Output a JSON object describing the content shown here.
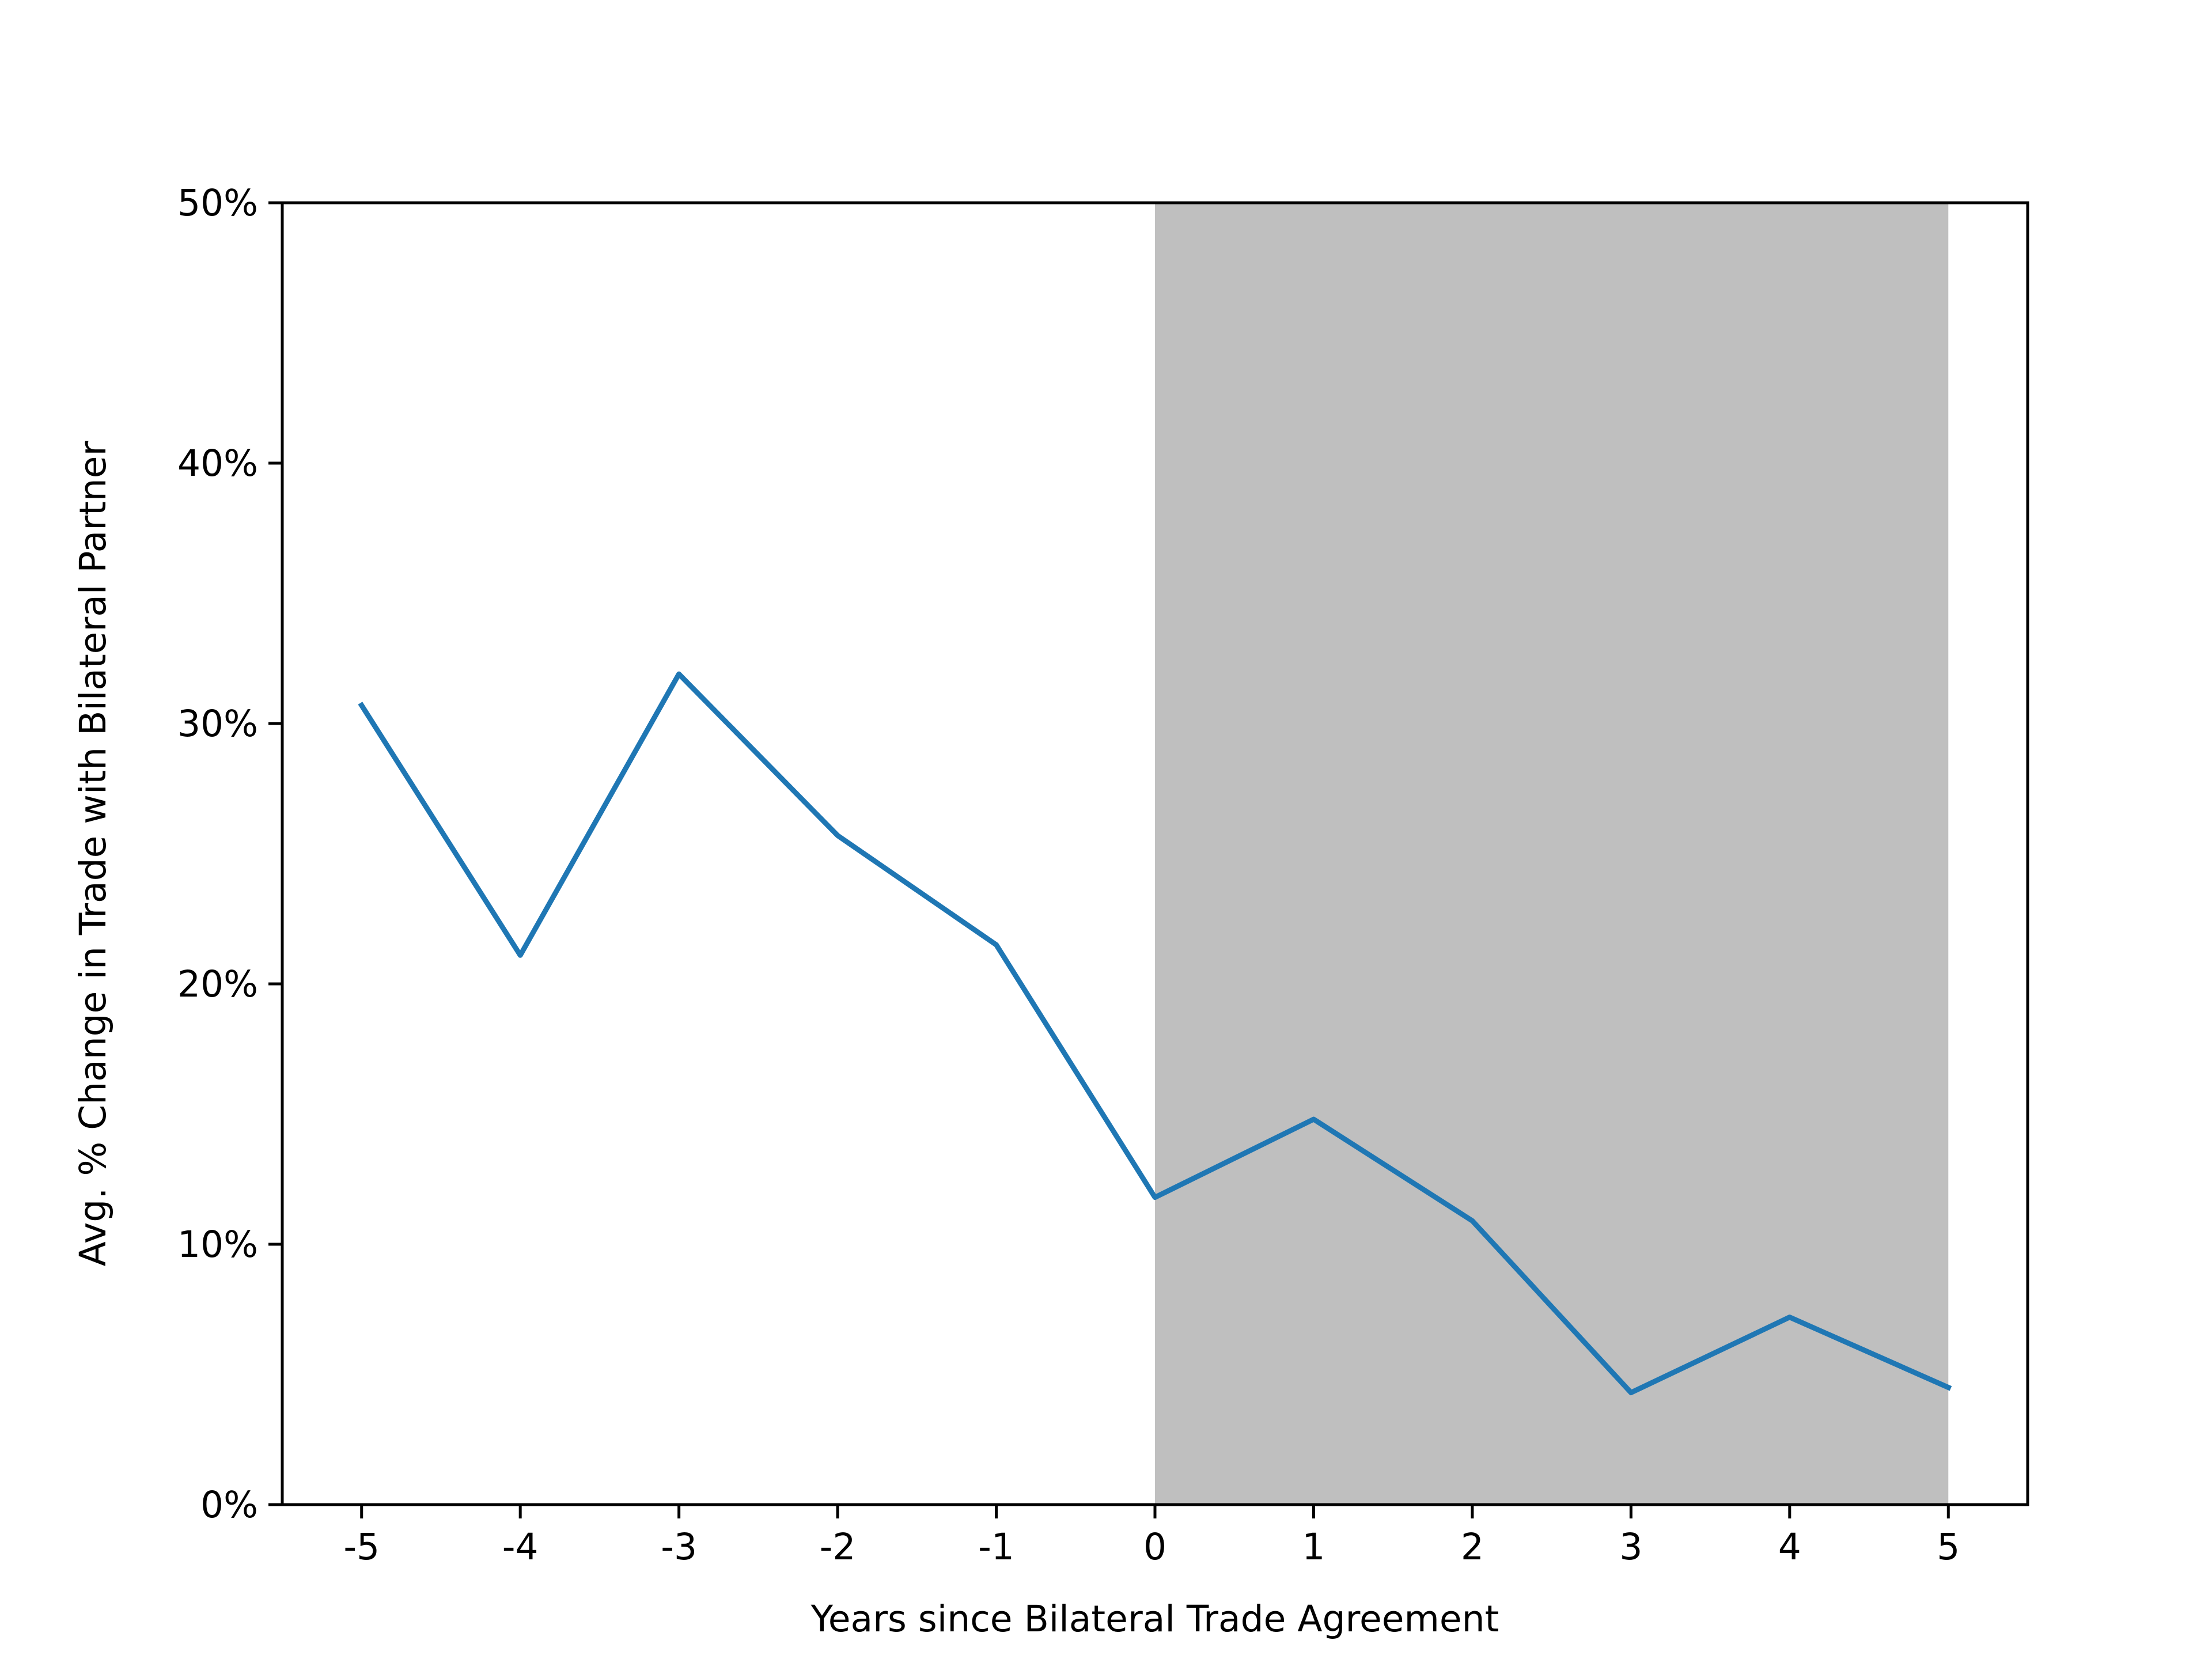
{
  "chart_data": {
    "type": "line",
    "title": "",
    "xlabel": "Years since Bilateral Trade Agreement",
    "ylabel": "Avg. % Change in Trade with Bilateral Partner",
    "x": [
      -5,
      -4,
      -3,
      -2,
      -1,
      0,
      1,
      2,
      3,
      4,
      5
    ],
    "x_tick_labels": [
      "-5",
      "-4",
      "-3",
      "-2",
      "-1",
      "0",
      "1",
      "2",
      "3",
      "4",
      "5"
    ],
    "series": [
      {
        "values": [
          30.7,
          21.1,
          31.9,
          25.7,
          21.5,
          11.8,
          14.8,
          10.9,
          4.3,
          7.2,
          4.5
        ],
        "color": "#1f77b4"
      }
    ],
    "xlim": [
      -5.5,
      5.5
    ],
    "ylim": [
      0,
      50
    ],
    "y_ticks": [
      0,
      10,
      20,
      30,
      40,
      50
    ],
    "y_tick_labels": [
      "0%",
      "10%",
      "20%",
      "30%",
      "40%",
      "50%"
    ],
    "shaded_region": {
      "x_start": 0,
      "x_end": 5,
      "color": "#bfbfbf"
    },
    "grid": false,
    "legend": "none"
  }
}
